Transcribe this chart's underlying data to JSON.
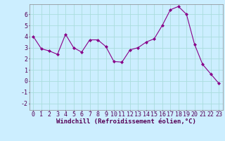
{
  "x": [
    0,
    1,
    2,
    3,
    4,
    5,
    6,
    7,
    8,
    9,
    10,
    11,
    12,
    13,
    14,
    15,
    16,
    17,
    18,
    19,
    20,
    21,
    22,
    23
  ],
  "y": [
    4.0,
    2.9,
    2.7,
    2.4,
    4.2,
    3.0,
    2.6,
    3.7,
    3.7,
    3.1,
    1.75,
    1.7,
    2.8,
    3.0,
    3.5,
    3.8,
    5.0,
    6.4,
    6.7,
    6.0,
    3.3,
    1.5,
    0.65,
    -0.2
  ],
  "line_color": "#880088",
  "marker": "D",
  "marker_size": 2.0,
  "bg_color": "#cceeff",
  "grid_color": "#aadddd",
  "xlabel": "Windchill (Refroidissement éolien,°C)",
  "xlim": [
    -0.5,
    23.5
  ],
  "ylim": [
    -2.6,
    6.9
  ],
  "yticks": [
    -2,
    -1,
    0,
    1,
    2,
    3,
    4,
    5,
    6
  ],
  "xticks": [
    0,
    1,
    2,
    3,
    4,
    5,
    6,
    7,
    8,
    9,
    10,
    11,
    12,
    13,
    14,
    15,
    16,
    17,
    18,
    19,
    20,
    21,
    22,
    23
  ],
  "label_fontsize": 6.5,
  "tick_fontsize": 6.0
}
